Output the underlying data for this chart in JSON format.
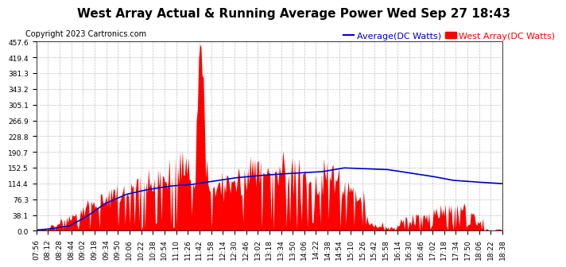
{
  "title": "West Array Actual & Running Average Power Wed Sep 27 18:43",
  "copyright": "Copyright 2023 Cartronics.com",
  "legend_avg": "Average(DC Watts)",
  "legend_west": "West Array(DC Watts)",
  "yticks": [
    0.0,
    38.1,
    76.3,
    114.4,
    152.5,
    190.7,
    228.8,
    266.9,
    305.1,
    343.2,
    381.3,
    419.4,
    457.6
  ],
  "ymax": 457.6,
  "ymin": 0.0,
  "bg_color": "#ffffff",
  "plot_bg": "#ffffff",
  "grid_color": "#b0b0b0",
  "bar_color": "#ff0000",
  "avg_color": "#0000cc",
  "title_fontsize": 11,
  "copyright_fontsize": 7,
  "tick_fontsize": 6.5,
  "legend_fontsize": 8,
  "xtick_labels": [
    "07:56",
    "08:12",
    "08:28",
    "08:44",
    "09:02",
    "09:18",
    "09:34",
    "09:50",
    "10:06",
    "10:22",
    "10:38",
    "10:54",
    "11:10",
    "11:26",
    "11:42",
    "11:58",
    "12:14",
    "12:30",
    "12:46",
    "13:02",
    "13:18",
    "13:34",
    "13:50",
    "14:06",
    "14:22",
    "14:38",
    "14:54",
    "15:10",
    "15:26",
    "15:42",
    "15:58",
    "16:14",
    "16:30",
    "16:46",
    "17:02",
    "17:18",
    "17:34",
    "17:50",
    "18:06",
    "18:22",
    "18:38"
  ],
  "avg_control_hours": [
    7.933,
    8.2,
    8.7,
    9.1,
    9.5,
    10.0,
    10.5,
    11.0,
    11.5,
    12.0,
    12.5,
    13.0,
    13.5,
    14.0,
    14.5,
    15.0,
    15.5,
    16.0,
    16.5,
    17.0,
    17.5,
    18.0,
    18.633
  ],
  "avg_control_vals": [
    2,
    4,
    12,
    35,
    65,
    88,
    100,
    108,
    112,
    120,
    128,
    133,
    137,
    140,
    143,
    152,
    150,
    148,
    140,
    132,
    122,
    118,
    114
  ]
}
